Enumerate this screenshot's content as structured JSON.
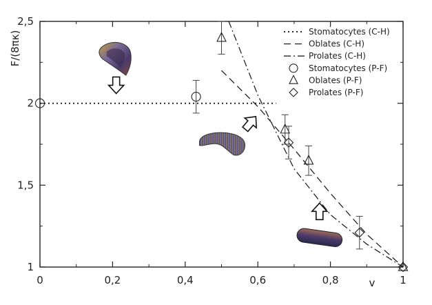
{
  "chart_data": {
    "type": "scatter",
    "xlabel": "v",
    "ylabel": "F/(8πκ)",
    "xlim": [
      0,
      1
    ],
    "ylim": [
      1,
      2.5
    ],
    "x_ticks": [
      0,
      0.2,
      0.4,
      0.6,
      0.8,
      1
    ],
    "x_tick_labels": [
      "0",
      "0,2",
      "0,4",
      "0,6",
      "0,8",
      "1"
    ],
    "y_ticks": [
      1,
      1.5,
      2,
      2.5
    ],
    "y_tick_labels": [
      "1",
      "1,5",
      "2",
      "2,5"
    ],
    "legend_position": "top-right",
    "series": [
      {
        "name": "Stomatocytes (C-H)",
        "kind": "line",
        "dash": "dotted",
        "x": [
          0,
          0.65
        ],
        "y": [
          2.0,
          2.0
        ]
      },
      {
        "name": "Oblates (C-H)",
        "kind": "line",
        "dash": "dashed",
        "x": [
          0.5,
          0.6,
          0.7,
          0.8,
          0.9,
          1.0
        ],
        "y": [
          2.2,
          1.98,
          1.72,
          1.45,
          1.2,
          1.0
        ]
      },
      {
        "name": "Prolates (C-H)",
        "kind": "line",
        "dash": "dashdot",
        "x": [
          0.52,
          0.6,
          0.7,
          0.8,
          0.9,
          1.0
        ],
        "y": [
          2.5,
          2.05,
          1.6,
          1.32,
          1.14,
          1.0
        ]
      },
      {
        "name": "Stomatocytes (P-F)",
        "kind": "marker",
        "marker": "circle",
        "x": [
          0,
          0.43
        ],
        "y": [
          2.0,
          2.04
        ],
        "yerr": [
          0,
          0.1
        ]
      },
      {
        "name": "Oblates (P-F)",
        "kind": "marker",
        "marker": "triangle",
        "x": [
          0.5,
          0.675,
          0.74,
          1.0
        ],
        "y": [
          2.4,
          1.84,
          1.65,
          1.0
        ],
        "yerr": [
          0.1,
          0.09,
          0.09,
          0
        ]
      },
      {
        "name": "Prolates (P-F)",
        "kind": "marker",
        "marker": "diamond",
        "x": [
          0.685,
          0.88,
          1.0
        ],
        "y": [
          1.76,
          1.21,
          1.0
        ],
        "yerr": [
          0.1,
          0.1,
          0
        ]
      }
    ],
    "annotations": [
      {
        "name": "stomatocyte-shape",
        "x": 0.21,
        "y": 2.28,
        "kind": "shape"
      },
      {
        "name": "oblate-shape",
        "x": 0.5,
        "y": 1.76,
        "kind": "shape"
      },
      {
        "name": "prolate-shape",
        "x": 0.77,
        "y": 1.18,
        "kind": "shape"
      },
      {
        "name": "arrow-down",
        "x": 0.21,
        "y": 2.11,
        "dir": "down"
      },
      {
        "name": "arrow-up-right",
        "x": 0.58,
        "y": 1.88,
        "dir": "up-right"
      },
      {
        "name": "arrow-up",
        "x": 0.77,
        "y": 1.34,
        "dir": "up"
      }
    ]
  }
}
